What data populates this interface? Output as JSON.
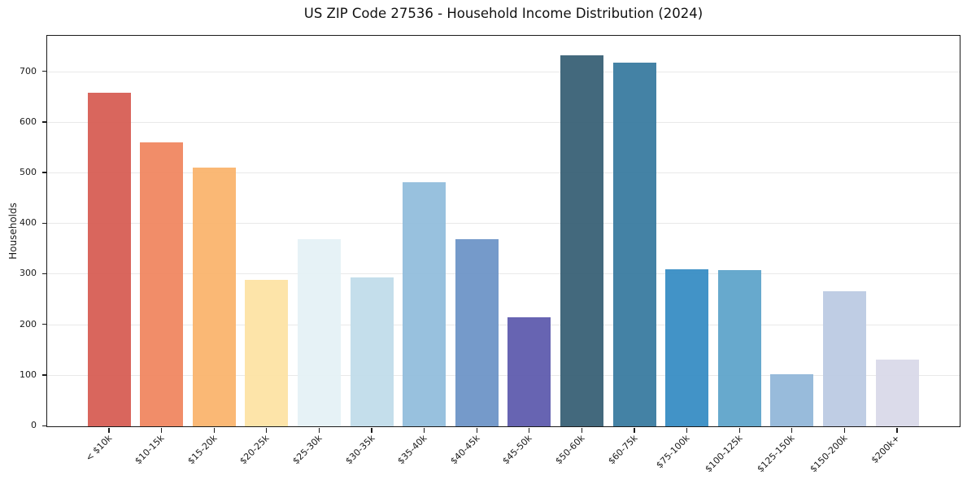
{
  "chart_data": {
    "type": "bar",
    "title": "US ZIP Code 27536 - Household Income Distribution (2024)",
    "xlabel": "",
    "ylabel": "Households",
    "categories": [
      "< $10k",
      "$10-15k",
      "$15-20k",
      "$20-25k",
      "$25-30k",
      "$30-35k",
      "$35-40k",
      "$40-45k",
      "$45-50k",
      "$50-60k",
      "$60-75k",
      "$75-100k",
      "$100-125k",
      "$125-150k",
      "$150-200k",
      "$200k+"
    ],
    "values": [
      659,
      561,
      511,
      289,
      369,
      294,
      482,
      370,
      215,
      733,
      719,
      311,
      308,
      103,
      267,
      132
    ],
    "bar_colors": [
      "#d65a51",
      "#f0845e",
      "#fab36a",
      "#fde2a2",
      "#e4f1f5",
      "#c0dcea",
      "#90bcdb",
      "#6b92c6",
      "#5b58ac",
      "#355e73",
      "#36799e",
      "#348bc3",
      "#5ba3c9",
      "#90b6d8",
      "#bac9e2",
      "#d8d8e8"
    ],
    "ylim": [
      0,
      770
    ],
    "yticks": [
      0,
      100,
      200,
      300,
      400,
      500,
      600,
      700
    ],
    "grid": "horizontal",
    "legend_position": "none"
  },
  "colors": {
    "background": "#ffffff",
    "gridline": "#e9e9e9",
    "axis_spine": "#1b1b1b",
    "text": "#1a1a1a"
  }
}
